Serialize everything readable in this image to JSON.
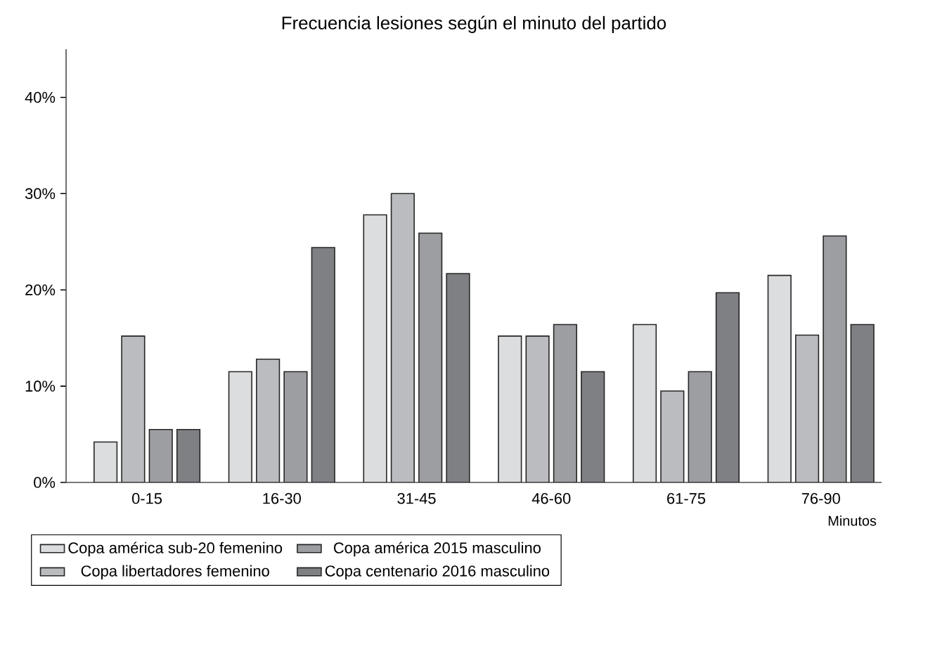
{
  "chart_data": {
    "type": "bar",
    "title": "Frecuencia lesiones según el minuto del partido",
    "xlabel": "Minutos",
    "categories": [
      "0-15",
      "16-30",
      "31-45",
      "46-60",
      "61-75",
      "76-90"
    ],
    "series": [
      {
        "name": "Copa américa sub-20 femenino",
        "color": "#dcdddf",
        "values": [
          4.2,
          11.5,
          27.8,
          15.2,
          16.4,
          21.5
        ]
      },
      {
        "name": "Copa libertadores femenino",
        "color": "#bbbcc0",
        "values": [
          15.2,
          12.8,
          30.0,
          15.2,
          9.5,
          15.3
        ]
      },
      {
        "name": "Copa américa 2015 masculino",
        "color": "#9d9ea2",
        "values": [
          5.5,
          11.5,
          25.9,
          16.4,
          11.5,
          25.6
        ]
      },
      {
        "name": "Copa centenario 2016 masculino",
        "color": "#7f8084",
        "values": [
          5.5,
          24.4,
          21.7,
          11.5,
          19.7,
          16.4
        ]
      }
    ],
    "ylim": [
      0,
      45
    ],
    "yticks": [
      {
        "value": 0,
        "label": "0%"
      },
      {
        "value": 10,
        "label": "10%"
      },
      {
        "value": 20,
        "label": "20%"
      },
      {
        "value": 30,
        "label": "30%"
      },
      {
        "value": 40,
        "label": "40%"
      }
    ],
    "legend": "bottom",
    "grid": false
  }
}
